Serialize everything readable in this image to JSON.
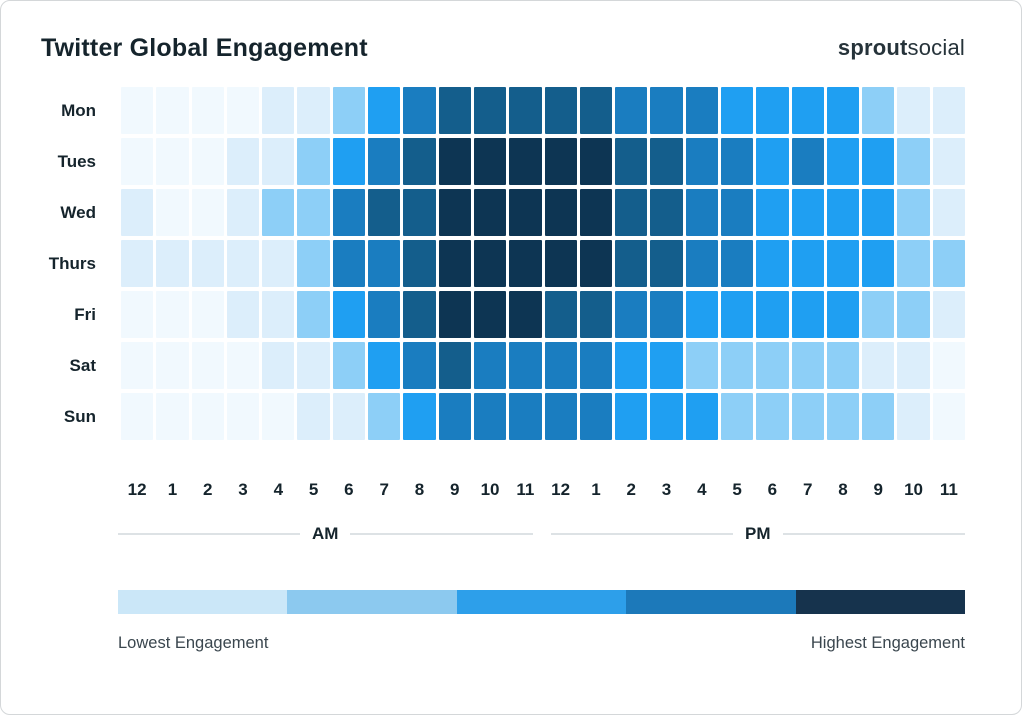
{
  "header": {
    "title": "Twitter Global Engagement",
    "logo_bold": "sprout",
    "logo_light": "social"
  },
  "axis": {
    "am_label": "AM",
    "pm_label": "PM"
  },
  "legend": {
    "low_label": "Lowest Engagement",
    "high_label": "Highest Engagement",
    "segment_colors": [
      "#cbe7f8",
      "#8cc9ef",
      "#2d9fea",
      "#1c79ba",
      "#16334d"
    ]
  },
  "chart_data": {
    "type": "heatmap",
    "title": "Twitter Global Engagement",
    "rows": [
      "Mon",
      "Tues",
      "Wed",
      "Thurs",
      "Fri",
      "Sat",
      "Sun"
    ],
    "columns": [
      "12",
      "1",
      "2",
      "3",
      "4",
      "5",
      "6",
      "7",
      "8",
      "9",
      "10",
      "11",
      "12",
      "1",
      "2",
      "3",
      "4",
      "5",
      "6",
      "7",
      "8",
      "9",
      "10",
      "11"
    ],
    "column_groups": [
      {
        "label": "AM",
        "span": 12
      },
      {
        "label": "PM",
        "span": 12
      }
    ],
    "value_scale": "engagement level 0 (lowest) to 6 (highest)",
    "level_colors": [
      "#f1f9fe",
      "#dceefb",
      "#8dcff7",
      "#1f9ff2",
      "#1a7dc0",
      "#145e8c",
      "#0d3553"
    ],
    "values": [
      [
        0,
        0,
        0,
        0,
        1,
        1,
        2,
        3,
        4,
        5,
        5,
        5,
        5,
        5,
        4,
        4,
        4,
        3,
        3,
        3,
        3,
        2,
        1,
        1
      ],
      [
        0,
        0,
        0,
        1,
        1,
        2,
        3,
        4,
        5,
        6,
        6,
        6,
        6,
        6,
        5,
        5,
        4,
        4,
        3,
        4,
        3,
        3,
        2,
        1
      ],
      [
        1,
        0,
        0,
        1,
        2,
        2,
        4,
        5,
        5,
        6,
        6,
        6,
        6,
        6,
        5,
        5,
        4,
        4,
        3,
        3,
        3,
        3,
        2,
        1
      ],
      [
        1,
        1,
        1,
        1,
        1,
        2,
        4,
        4,
        5,
        6,
        6,
        6,
        6,
        6,
        5,
        5,
        4,
        4,
        3,
        3,
        3,
        3,
        2,
        2
      ],
      [
        0,
        0,
        0,
        1,
        1,
        2,
        3,
        4,
        5,
        6,
        6,
        6,
        5,
        5,
        4,
        4,
        3,
        3,
        3,
        3,
        3,
        2,
        2,
        1
      ],
      [
        0,
        0,
        0,
        0,
        1,
        1,
        2,
        3,
        4,
        5,
        4,
        4,
        4,
        4,
        3,
        3,
        2,
        2,
        2,
        2,
        2,
        1,
        1,
        0
      ],
      [
        0,
        0,
        0,
        0,
        0,
        1,
        1,
        2,
        3,
        4,
        4,
        4,
        4,
        4,
        3,
        3,
        3,
        2,
        2,
        2,
        2,
        2,
        1,
        0
      ]
    ],
    "legend_labels": [
      "Lowest Engagement",
      "Highest Engagement"
    ],
    "legend_position": "bottom",
    "grid": false
  }
}
